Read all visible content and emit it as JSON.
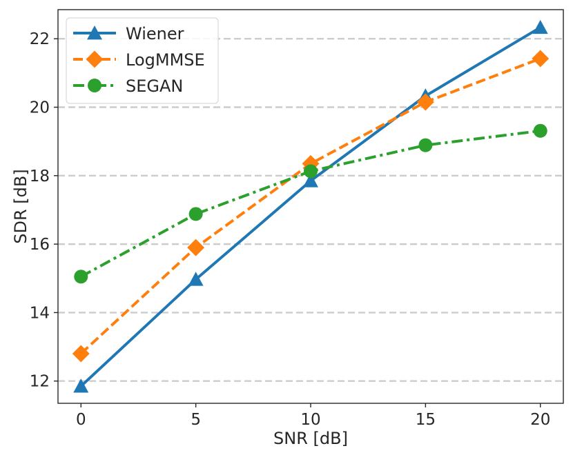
{
  "chart_data": {
    "type": "line",
    "title": "",
    "xlabel": "SNR [dB]",
    "ylabel": "SDR [dB]",
    "x": [
      0,
      5,
      10,
      15,
      20
    ],
    "xticks": [
      "0",
      "5",
      "10",
      "15",
      "20"
    ],
    "yticks": [
      "12",
      "14",
      "16",
      "18",
      "20",
      "22"
    ],
    "xlim": [
      -1,
      21
    ],
    "ylim": [
      11.35,
      22.85
    ],
    "grid": "horizontal dashed",
    "legend_position": "top-left",
    "series": [
      {
        "name": "Wiener",
        "values": [
          11.85,
          14.97,
          17.85,
          20.33,
          22.33
        ],
        "color": "#1f77b4",
        "marker": "triangle",
        "linestyle": "solid"
      },
      {
        "name": "LogMMSE",
        "values": [
          12.8,
          15.9,
          18.35,
          20.15,
          21.42
        ],
        "color": "#ff7f0e",
        "marker": "diamond",
        "linestyle": "dashed"
      },
      {
        "name": "SEGAN",
        "values": [
          15.05,
          16.88,
          18.13,
          18.89,
          19.31
        ],
        "color": "#2ca02c",
        "marker": "circle",
        "linestyle": "dashdot"
      }
    ]
  }
}
